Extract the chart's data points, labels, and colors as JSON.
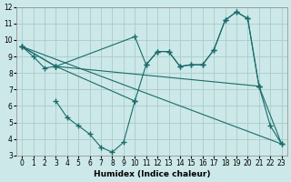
{
  "xlabel": "Humidex (Indice chaleur)",
  "background_color": "#cde8e8",
  "grid_color": "#b8d8d8",
  "line_color": "#1a6b6b",
  "xlim": [
    -0.5,
    23.5
  ],
  "ylim": [
    3,
    12
  ],
  "xticks": [
    0,
    1,
    2,
    3,
    4,
    5,
    6,
    7,
    8,
    9,
    10,
    11,
    12,
    13,
    14,
    15,
    16,
    17,
    18,
    19,
    20,
    21,
    22,
    23
  ],
  "yticks": [
    3,
    4,
    5,
    6,
    7,
    8,
    9,
    10,
    11,
    12
  ],
  "line1_x": [
    0,
    1,
    2,
    3,
    10,
    11,
    12,
    13,
    14,
    15,
    16,
    17,
    18,
    19,
    20,
    21
  ],
  "line1_y": [
    9.6,
    9.0,
    8.3,
    8.4,
    10.2,
    8.5,
    9.3,
    9.3,
    8.4,
    8.5,
    8.5,
    9.4,
    11.2,
    11.7,
    11.3,
    7.2
  ],
  "line2_x": [
    0,
    3,
    21,
    23
  ],
  "line2_y": [
    9.6,
    8.4,
    7.2,
    3.7
  ],
  "line3_x": [
    0,
    3,
    10,
    11,
    12,
    13,
    14,
    15,
    16,
    17,
    18,
    19,
    20,
    21,
    22,
    23
  ],
  "line3_y": [
    9.6,
    8.4,
    6.3,
    8.5,
    9.3,
    9.3,
    8.4,
    8.5,
    8.5,
    9.4,
    11.2,
    11.7,
    11.3,
    7.2,
    4.8,
    3.7
  ],
  "line4_x": [
    3,
    4,
    5,
    6,
    7,
    8,
    9,
    10
  ],
  "line4_y": [
    6.3,
    5.3,
    4.8,
    4.3,
    3.5,
    3.2,
    3.8,
    6.3
  ],
  "line5_x": [
    0,
    23
  ],
  "line5_y": [
    9.6,
    3.7
  ],
  "marker": "+",
  "markersize": 4,
  "linewidth": 0.8,
  "tick_fontsize": 5.5,
  "xlabel_fontsize": 6.5
}
